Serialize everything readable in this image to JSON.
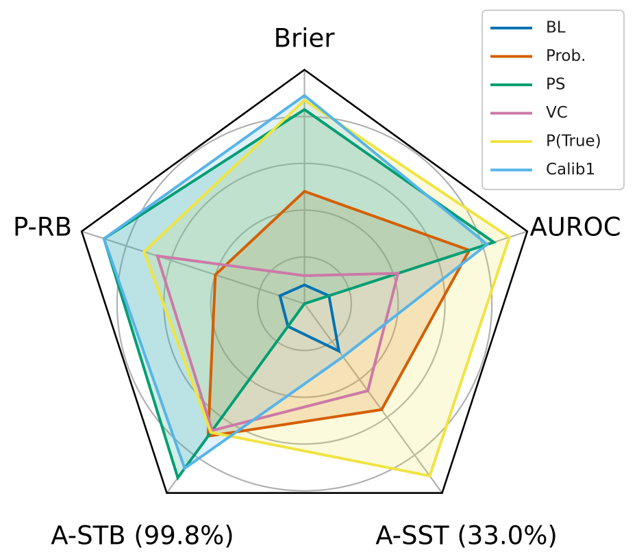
{
  "chart_data": {
    "type": "radar",
    "axes": [
      "Brier",
      "AUROC",
      "A-SST (33.0%)",
      "A-STB (99.8%)",
      "P-RB"
    ],
    "rmax": 1.0,
    "rings": [
      0.2,
      0.4,
      0.6,
      0.8
    ],
    "grid": true,
    "legend_position": "top-right",
    "series": [
      {
        "name": "BL",
        "color": "#0072B2",
        "fill": false,
        "values": [
          0.08,
          0.11,
          0.25,
          0.12,
          0.11
        ]
      },
      {
        "name": "Prob.",
        "color": "#D55E00",
        "fill": true,
        "values": [
          0.48,
          0.74,
          0.56,
          0.7,
          0.4
        ]
      },
      {
        "name": "PS",
        "color": "#009E73",
        "fill": true,
        "values": [
          0.83,
          0.85,
          0.0,
          0.92,
          0.9
        ]
      },
      {
        "name": "VC",
        "color": "#CC79A7",
        "fill": false,
        "values": [
          0.12,
          0.42,
          0.46,
          0.67,
          0.66
        ]
      },
      {
        "name": "P(True)",
        "color": "#F0E442",
        "fill": true,
        "values": [
          0.87,
          0.92,
          0.91,
          0.68,
          0.72
        ]
      },
      {
        "name": "Calib1",
        "color": "#56B4E9",
        "fill": true,
        "values": [
          0.89,
          0.82,
          0.28,
          0.87,
          0.9
        ]
      }
    ]
  }
}
